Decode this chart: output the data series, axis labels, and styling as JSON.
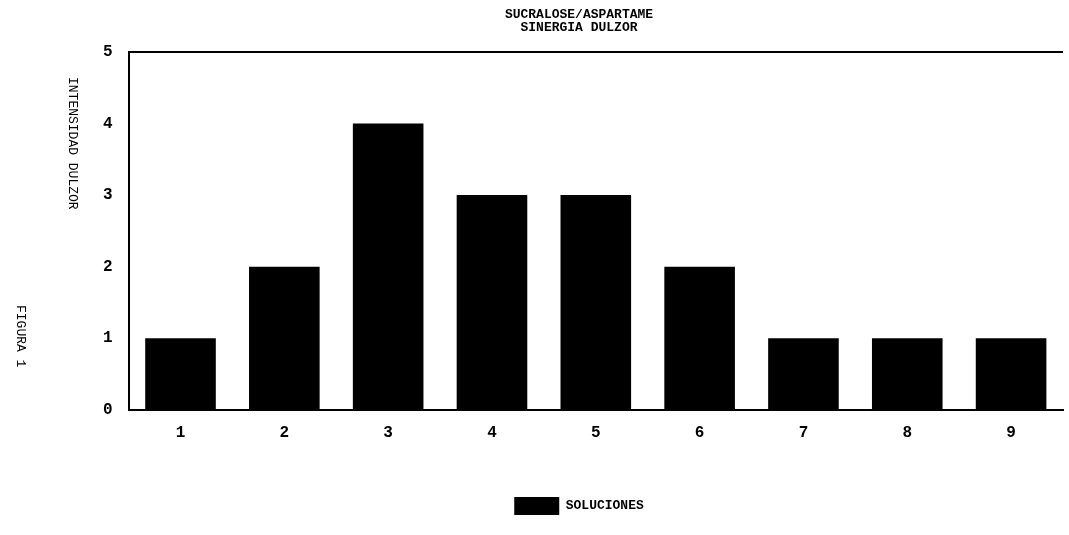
{
  "chart_data": {
    "type": "bar",
    "title": "SUCRALOSE/ASPARTAME",
    "subtitle": "SINERGIA DULZOR",
    "ylabel": "INTENSIDAD DULZOR",
    "categories": [
      "1",
      "2",
      "3",
      "4",
      "5",
      "6",
      "7",
      "8",
      "9"
    ],
    "series": [
      {
        "name": "SOLUCIONES",
        "color": "#000000",
        "values": [
          1,
          2,
          4,
          3,
          3,
          2,
          1,
          1,
          1
        ]
      }
    ],
    "ylim": [
      0,
      5
    ],
    "yticks": [
      0,
      1,
      2,
      3,
      4,
      5
    ],
    "grid": false,
    "legend": "bottom",
    "annotations": [
      "FIGURA 1"
    ]
  }
}
